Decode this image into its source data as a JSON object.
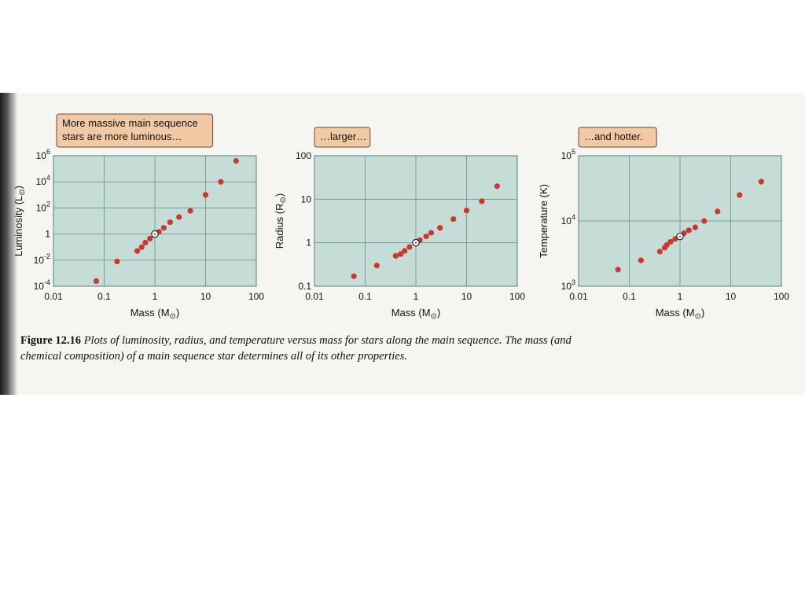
{
  "figure": {
    "caption_number": "Figure 12.16",
    "caption_text": "Plots of luminosity, radius, and temperature versus mass for stars along the main sequence. The mass (and chemical composition) of a main sequence star determines all of its other properties."
  },
  "colors": {
    "panel_fill": "#c6dcd6",
    "grid": "#7d9e98",
    "point": "#c93a2e",
    "callout_fill": "#f1c9a4",
    "callout_stroke": "#6b4a33"
  },
  "chart_data": [
    {
      "type": "scatter",
      "title": "",
      "callout": [
        "More massive main sequence",
        "stars are more luminous…"
      ],
      "xlabel_main": "Mass (M",
      "xlabel_end": ")",
      "ylabel_main": "Luminosity (L",
      "ylabel_end": ")",
      "x_scale": "log",
      "y_scale": "log",
      "xlim": [
        0.01,
        100
      ],
      "ylim": [
        0.0001,
        1000000
      ],
      "x_ticks": [
        0.01,
        0.1,
        1,
        10,
        100
      ],
      "x_tick_labels": [
        "0.01",
        "0.1",
        "1",
        "10",
        "100"
      ],
      "y_ticks": [
        0.0001,
        0.01,
        1,
        100,
        10000,
        1000000
      ],
      "y_tick_labels": [
        [
          "10",
          "-4"
        ],
        [
          "10",
          "-2"
        ],
        [
          "1",
          ""
        ],
        [
          "10",
          "2"
        ],
        [
          "10",
          "4"
        ],
        [
          "10",
          "6"
        ]
      ],
      "grid": true,
      "points": [
        {
          "x": 0.07,
          "y": 0.00025
        },
        {
          "x": 0.18,
          "y": 0.008
        },
        {
          "x": 0.45,
          "y": 0.05
        },
        {
          "x": 0.55,
          "y": 0.1
        },
        {
          "x": 0.65,
          "y": 0.22
        },
        {
          "x": 0.8,
          "y": 0.45
        },
        {
          "x": 1.2,
          "y": 1.5
        },
        {
          "x": 1.5,
          "y": 3
        },
        {
          "x": 2.0,
          "y": 8
        },
        {
          "x": 3.0,
          "y": 20
        },
        {
          "x": 5.0,
          "y": 60
        },
        {
          "x": 10,
          "y": 1000
        },
        {
          "x": 20,
          "y": 10000
        },
        {
          "x": 40,
          "y": 400000
        }
      ],
      "sun": {
        "x": 1,
        "y": 1
      }
    },
    {
      "type": "scatter",
      "title": "",
      "callout": [
        "…larger…"
      ],
      "xlabel_main": "Mass (M",
      "xlabel_end": ")",
      "ylabel_main": "Radius (R",
      "ylabel_end": ")",
      "x_scale": "log",
      "y_scale": "log",
      "xlim": [
        0.01,
        100
      ],
      "ylim": [
        0.1,
        100
      ],
      "x_ticks": [
        0.01,
        0.1,
        1,
        10,
        100
      ],
      "x_tick_labels": [
        "0.01",
        "0.1",
        "1",
        "10",
        "100"
      ],
      "y_ticks": [
        0.1,
        1,
        10,
        100
      ],
      "y_tick_labels": [
        [
          "0.1",
          ""
        ],
        [
          "1",
          ""
        ],
        [
          "10",
          ""
        ],
        [
          "100",
          ""
        ]
      ],
      "grid": true,
      "points": [
        {
          "x": 0.06,
          "y": 0.17
        },
        {
          "x": 0.17,
          "y": 0.3
        },
        {
          "x": 0.4,
          "y": 0.5
        },
        {
          "x": 0.5,
          "y": 0.55
        },
        {
          "x": 0.6,
          "y": 0.65
        },
        {
          "x": 0.75,
          "y": 0.8
        },
        {
          "x": 1.2,
          "y": 1.15
        },
        {
          "x": 1.6,
          "y": 1.4
        },
        {
          "x": 2.0,
          "y": 1.7
        },
        {
          "x": 3.0,
          "y": 2.2
        },
        {
          "x": 5.5,
          "y": 3.5
        },
        {
          "x": 10,
          "y": 5.5
        },
        {
          "x": 20,
          "y": 9
        },
        {
          "x": 40,
          "y": 20
        }
      ],
      "sun": {
        "x": 1,
        "y": 1
      }
    },
    {
      "type": "scatter",
      "title": "",
      "callout": [
        "…and hotter."
      ],
      "xlabel_main": "Mass (M",
      "xlabel_end": ")",
      "ylabel_main": "Temperature (K)",
      "ylabel_end": "",
      "x_scale": "log",
      "y_scale": "log",
      "xlim": [
        0.01,
        100
      ],
      "ylim": [
        1000,
        100000
      ],
      "x_ticks": [
        0.01,
        0.1,
        1,
        10,
        100
      ],
      "x_tick_labels": [
        "0.01",
        "0.1",
        "1",
        "10",
        "100"
      ],
      "y_ticks": [
        1000,
        10000,
        100000
      ],
      "y_tick_labels": [
        [
          "10",
          "3"
        ],
        [
          "10",
          "4"
        ],
        [
          "10",
          "5"
        ]
      ],
      "grid": true,
      "points": [
        {
          "x": 0.06,
          "y": 1800
        },
        {
          "x": 0.17,
          "y": 2500
        },
        {
          "x": 0.4,
          "y": 3400
        },
        {
          "x": 0.5,
          "y": 3900
        },
        {
          "x": 0.55,
          "y": 4300
        },
        {
          "x": 0.65,
          "y": 4800
        },
        {
          "x": 0.8,
          "y": 5300
        },
        {
          "x": 1.2,
          "y": 6500
        },
        {
          "x": 1.5,
          "y": 7200
        },
        {
          "x": 2.0,
          "y": 8000
        },
        {
          "x": 3.0,
          "y": 10000
        },
        {
          "x": 5.5,
          "y": 14000
        },
        {
          "x": 15,
          "y": 25000
        },
        {
          "x": 40,
          "y": 40000
        }
      ],
      "sun": {
        "x": 1,
        "y": 5800
      }
    }
  ]
}
